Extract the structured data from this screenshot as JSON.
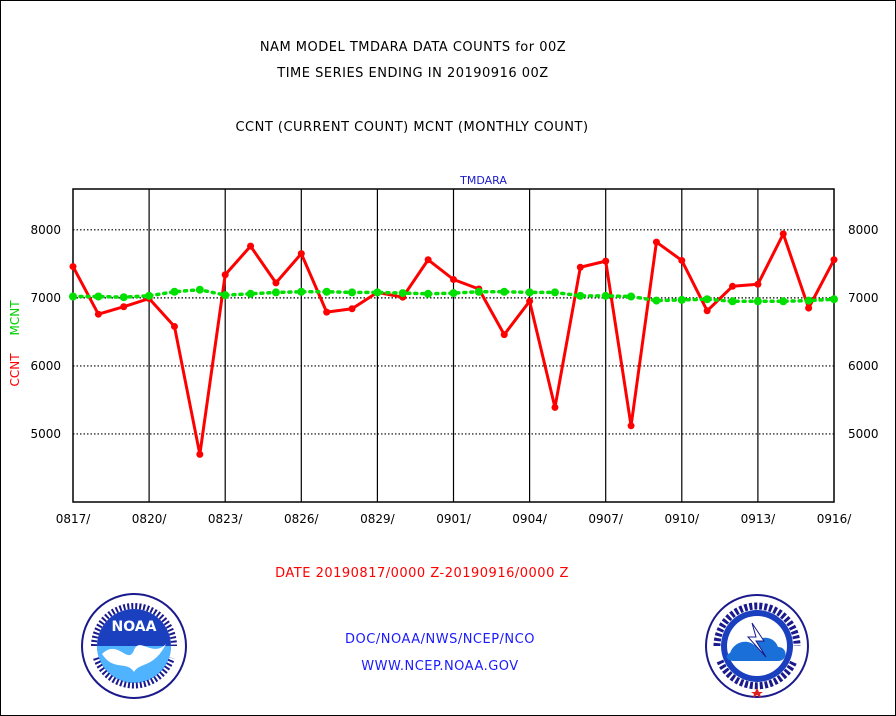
{
  "header": {
    "line1": "NAM MODEL TMDARA DATA COUNTS for 00Z",
    "line2": "TIME SERIES ENDING IN 20190916 00Z",
    "line3": "CCNT (CURRENT COUNT) MCNT (MONTHLY COUNT)"
  },
  "footer": {
    "date_range": "DATE 20190817/0000 Z-20190916/0000 Z",
    "credit_line1": "DOC/NOAA/NWS/NCEP/NCO",
    "credit_line2": "WWW.NCEP.NOAA.GOV"
  },
  "logos": {
    "noaa_text": "NOAA",
    "nws_text": "NATIONAL WEATHER SERVICE",
    "noaa_ring_text": "NATIONAL OCEANIC AND ATMOSPHERIC ADMINISTRATION U.S. DEPARTMENT OF COMMERCE"
  },
  "chart_data": {
    "type": "line",
    "title": "TMDARA",
    "ylabel_series_1": "CCNT",
    "ylabel_series_2": "MCNT",
    "x_tick_labels": [
      "0817/",
      "0820/",
      "0823/",
      "0826/",
      "0829/",
      "0901/",
      "0904/",
      "0907/",
      "0910/",
      "0913/",
      "0916/"
    ],
    "y_ticks": [
      5000,
      6000,
      7000,
      8000
    ],
    "ylim": [
      4000,
      8600
    ],
    "x_range_days": [
      0,
      30
    ],
    "grid": true,
    "colors": {
      "CCNT": "#ff0000",
      "MCNT": "#00e000",
      "title": "#1a1acc",
      "axes": "#000000"
    },
    "series": [
      {
        "name": "CCNT",
        "style": "solid",
        "x": [
          0,
          1,
          2,
          3,
          4,
          5,
          6,
          7,
          8,
          9,
          10,
          11,
          12,
          13,
          14,
          15,
          16,
          17,
          18,
          19,
          20,
          21,
          22,
          23,
          24,
          25,
          26,
          27,
          28,
          29,
          30
        ],
        "values": [
          7460,
          6760,
          6870,
          6990,
          6580,
          4700,
          7340,
          7760,
          7220,
          7650,
          6790,
          6840,
          7080,
          7010,
          7560,
          7270,
          7130,
          6460,
          6950,
          5390,
          7450,
          7540,
          5120,
          7820,
          7550,
          6810,
          7170,
          7200,
          7940,
          6850,
          7560
        ]
      },
      {
        "name": "MCNT",
        "style": "dotted",
        "x": [
          0,
          1,
          2,
          3,
          4,
          5,
          6,
          7,
          8,
          9,
          10,
          11,
          12,
          13,
          14,
          15,
          16,
          17,
          18,
          19,
          20,
          21,
          22,
          23,
          24,
          25,
          26,
          27,
          28,
          29,
          30
        ],
        "values": [
          7020,
          7020,
          7010,
          7030,
          7090,
          7120,
          7040,
          7060,
          7080,
          7090,
          7090,
          7080,
          7080,
          7070,
          7060,
          7070,
          7090,
          7090,
          7080,
          7080,
          7030,
          7030,
          7020,
          6960,
          6970,
          6980,
          6950,
          6950,
          6950,
          6960,
          6980
        ]
      }
    ]
  }
}
